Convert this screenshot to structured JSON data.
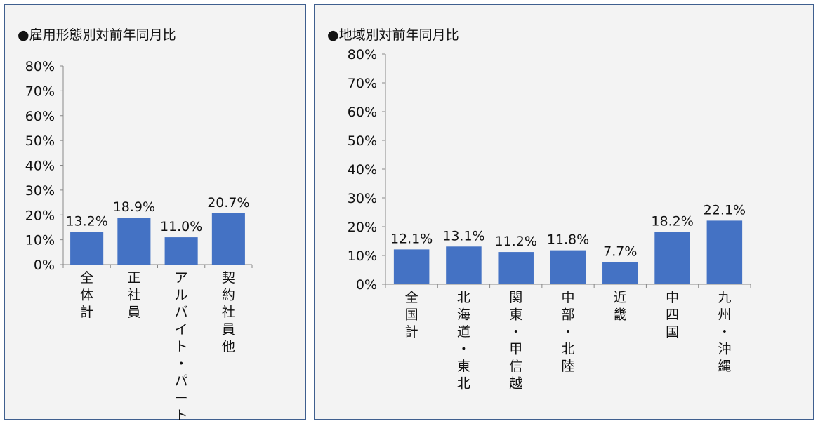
{
  "chart_data": [
    {
      "type": "bar",
      "title": "●雇用形態別対前年同月比",
      "categories": [
        "全体計",
        "正社員",
        "アルバイト・パート",
        "契約社員他"
      ],
      "values": [
        13.2,
        18.9,
        11.0,
        20.7
      ],
      "data_labels": [
        "13.2%",
        "18.9%",
        "11.0%",
        "20.7%"
      ],
      "ylim": [
        0,
        80
      ],
      "yticks": [
        "0%",
        "10%",
        "20%",
        "30%",
        "40%",
        "50%",
        "60%",
        "70%",
        "80%"
      ],
      "grid": false,
      "bar_color": "#4472c4"
    },
    {
      "type": "bar",
      "title": "●地域別対前年同月比",
      "categories": [
        "全国計",
        "北海道・東北",
        "関東・甲信越",
        "中部・北陸",
        "近畿",
        "中四国",
        "九州・沖縄"
      ],
      "values": [
        12.1,
        13.1,
        11.2,
        11.8,
        7.7,
        18.2,
        22.1
      ],
      "data_labels": [
        "12.1%",
        "13.1%",
        "11.2%",
        "11.8%",
        "7.7%",
        "18.2%",
        "22.1%"
      ],
      "ylim": [
        0,
        80
      ],
      "yticks": [
        "0%",
        "10%",
        "20%",
        "30%",
        "40%",
        "50%",
        "60%",
        "70%",
        "80%"
      ],
      "grid": false,
      "bar_color": "#4472c4"
    }
  ]
}
